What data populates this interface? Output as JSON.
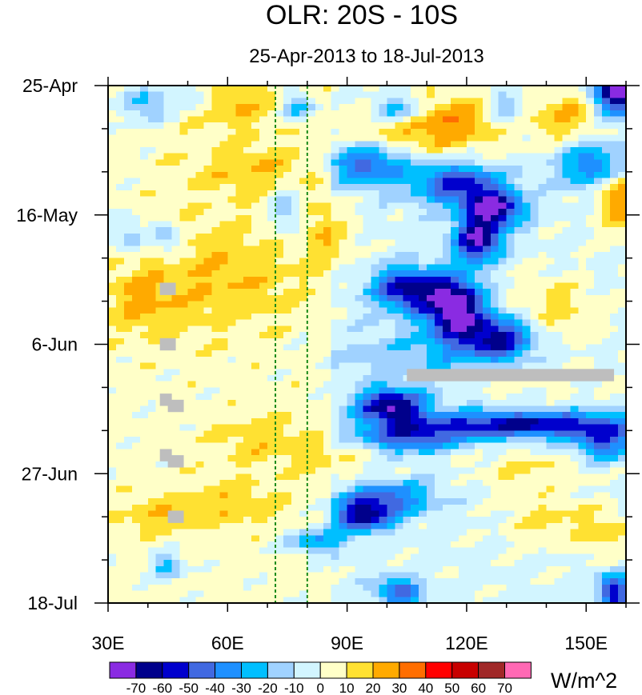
{
  "chart_data": {
    "type": "heatmap",
    "title": "OLR: 20S - 10S",
    "subtitle": "25-Apr-2013 to 18-Jul-2013",
    "xlabel": "",
    "ylabel": "",
    "xlim": [
      30,
      160
    ],
    "ylim_days": [
      0,
      84
    ],
    "x_ticks": [
      {
        "value": 30,
        "label": "30E"
      },
      {
        "value": 60,
        "label": "60E"
      },
      {
        "value": 90,
        "label": "90E"
      },
      {
        "value": 120,
        "label": "120E"
      },
      {
        "value": 150,
        "label": "150E"
      }
    ],
    "x_minor_step": 10,
    "y_ticks": [
      {
        "day": 0,
        "label": "25-Apr"
      },
      {
        "day": 21,
        "label": "16-May"
      },
      {
        "day": 42,
        "label": "6-Jun"
      },
      {
        "day": 63,
        "label": "27-Jun"
      },
      {
        "day": 84,
        "label": "18-Jul"
      }
    ],
    "y_minor_step": 7,
    "reference_lines_lon": [
      72,
      80
    ],
    "reference_line_color": "#1a8a1a",
    "missing_color": "#bebebe",
    "colorbar": {
      "units": "W/m^2",
      "levels": [
        -70,
        -60,
        -50,
        -40,
        -30,
        -20,
        -10,
        0,
        10,
        20,
        30,
        40,
        50,
        60,
        70
      ],
      "labels": [
        "-70",
        "-60",
        "-50",
        "-40",
        "-30",
        "-20",
        "-10",
        "0",
        "10",
        "20",
        "30",
        "40",
        "50",
        "60",
        "70"
      ],
      "colors": [
        "#8a2be2",
        "#00008b",
        "#0000cd",
        "#4169e1",
        "#1e90ff",
        "#00bfff",
        "#a0d2ff",
        "#d2f5ff",
        "#ffffc8",
        "#ffe132",
        "#ffaa00",
        "#ff6e00",
        "#ff0000",
        "#c80000",
        "#a02828",
        "#ff69b4"
      ]
    },
    "base_anomaly": 4,
    "anomaly_features": [
      {
        "lon": 158,
        "day": 1,
        "value": -80,
        "slon": 4,
        "sday": 2.5
      },
      {
        "lon": 103,
        "day": 4,
        "value": -40,
        "slon": 5,
        "sday": 1.8
      },
      {
        "lon": 78,
        "day": 3.5,
        "value": -35,
        "slon": 3,
        "sday": 1.5
      },
      {
        "lon": 40,
        "day": 3,
        "value": -30,
        "slon": 4,
        "sday": 2
      },
      {
        "lon": 52,
        "day": 2,
        "value": -18,
        "slon": 3,
        "sday": 1.5
      },
      {
        "lon": 130,
        "day": 4,
        "value": -30,
        "slon": 3,
        "sday": 2
      },
      {
        "lon": 95,
        "day": 13,
        "value": -45,
        "slon": 7,
        "sday": 2.5
      },
      {
        "lon": 118,
        "day": 16,
        "value": -50,
        "slon": 8,
        "sday": 2.5
      },
      {
        "lon": 127,
        "day": 20,
        "value": -65,
        "slon": 5,
        "sday": 2
      },
      {
        "lon": 152,
        "day": 13,
        "value": -40,
        "slon": 6,
        "sday": 2.5
      },
      {
        "lon": 123,
        "day": 25,
        "value": -70,
        "slon": 4,
        "sday": 2.5
      },
      {
        "lon": 75,
        "day": 20,
        "value": -25,
        "slon": 3,
        "sday": 3
      },
      {
        "lon": 45,
        "day": 25,
        "value": -25,
        "slon": 3,
        "sday": 2
      },
      {
        "lon": 35,
        "day": 24,
        "value": -22,
        "slon": 3,
        "sday": 2
      },
      {
        "lon": 105,
        "day": 33,
        "value": -60,
        "slon": 6,
        "sday": 2.5
      },
      {
        "lon": 117,
        "day": 36,
        "value": -78,
        "slon": 5,
        "sday": 3.5
      },
      {
        "lon": 128,
        "day": 41,
        "value": -55,
        "slon": 6,
        "sday": 2.5
      },
      {
        "lon": 101,
        "day": 52,
        "value": -65,
        "slon": 6,
        "sday": 2
      },
      {
        "lon": 135,
        "day": 55,
        "value": -60,
        "slon": 18,
        "sday": 1.5
      },
      {
        "lon": 105,
        "day": 57,
        "value": -45,
        "slon": 10,
        "sday": 1.8
      },
      {
        "lon": 155,
        "day": 58,
        "value": -40,
        "slon": 6,
        "sday": 2
      },
      {
        "lon": 100,
        "day": 67,
        "value": -40,
        "slon": 8,
        "sday": 2
      },
      {
        "lon": 94,
        "day": 70,
        "value": -55,
        "slon": 5,
        "sday": 1.8
      },
      {
        "lon": 82,
        "day": 74,
        "value": -35,
        "slon": 5,
        "sday": 1.5
      },
      {
        "lon": 103,
        "day": 82,
        "value": -45,
        "slon": 4,
        "sday": 1.5
      },
      {
        "lon": 157,
        "day": 82,
        "value": -55,
        "slon": 3,
        "sday": 2
      },
      {
        "lon": 45,
        "day": 78,
        "value": -30,
        "slon": 3,
        "sday": 1.5
      },
      {
        "lon": 110,
        "day": 45,
        "value": -20,
        "slon": 15,
        "sday": 4
      },
      {
        "lon": 112,
        "day": 6,
        "value": 34,
        "slon": 14,
        "sday": 3.5
      },
      {
        "lon": 62,
        "day": 3,
        "value": 16,
        "slon": 8,
        "sday": 3
      },
      {
        "lon": 68,
        "day": 14,
        "value": 16,
        "slon": 12,
        "sday": 3
      },
      {
        "lon": 58,
        "day": 31,
        "value": 16,
        "slon": 14,
        "sday": 6
      },
      {
        "lon": 38,
        "day": 35,
        "value": 14,
        "slon": 6,
        "sday": 4
      },
      {
        "lon": 158,
        "day": 18,
        "value": 32,
        "slon": 4,
        "sday": 4
      },
      {
        "lon": 145,
        "day": 5,
        "value": 22,
        "slon": 6,
        "sday": 3
      },
      {
        "lon": 142,
        "day": 36,
        "value": 16,
        "slon": 8,
        "sday": 4
      },
      {
        "lon": 120,
        "day": 48,
        "value": 14,
        "slon": 20,
        "sday": 2
      },
      {
        "lon": 135,
        "day": 62,
        "value": 15,
        "slon": 10,
        "sday": 2
      },
      {
        "lon": 70,
        "day": 58,
        "value": 13,
        "slon": 10,
        "sday": 3
      },
      {
        "lon": 155,
        "day": 73,
        "value": 16,
        "slon": 5,
        "sday": 3
      },
      {
        "lon": 140,
        "day": 70,
        "value": 15,
        "slon": 8,
        "sday": 3
      },
      {
        "lon": 60,
        "day": 68,
        "value": 15,
        "slon": 10,
        "sday": 2.5
      },
      {
        "lon": 42,
        "day": 70,
        "value": 13,
        "slon": 6,
        "sday": 2
      },
      {
        "lon": 86,
        "day": 24,
        "value": 15,
        "slon": 5,
        "sday": 4
      },
      {
        "lon": 90,
        "day": 60,
        "value": 12,
        "slon": 6,
        "sday": 3
      }
    ],
    "missing_regions": [
      {
        "lon": [
          105,
          157
        ],
        "day": [
          46,
          48
        ]
      },
      {
        "lon": [
          43,
          47
        ],
        "day": [
          32,
          34
        ]
      },
      {
        "lon": [
          43,
          47
        ],
        "day": [
          41,
          43
        ]
      },
      {
        "lon": [
          43,
          46
        ],
        "day": [
          50,
          52
        ]
      },
      {
        "lon": [
          45,
          49
        ],
        "day": [
          51,
          53
        ]
      },
      {
        "lon": [
          43,
          46
        ],
        "day": [
          59,
          61
        ]
      },
      {
        "lon": [
          45,
          49
        ],
        "day": [
          60,
          62
        ]
      },
      {
        "lon": [
          45,
          49
        ],
        "day": [
          69,
          71
        ]
      }
    ]
  }
}
